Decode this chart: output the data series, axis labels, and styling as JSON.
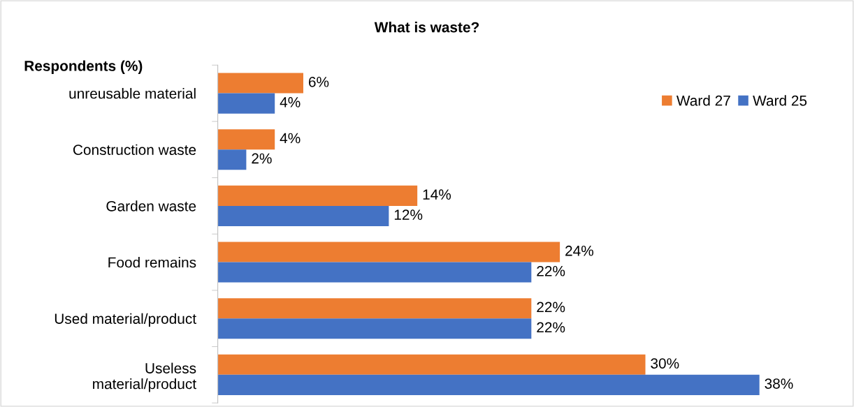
{
  "chart_data": {
    "type": "bar",
    "orientation": "horizontal",
    "title": "What is waste?",
    "ylabel": "Respondents (%)",
    "categories": [
      "unreusable material",
      "Construction waste",
      "Garden waste",
      "Food remains",
      "Used material/product",
      "Useless\nmaterial/product"
    ],
    "series": [
      {
        "name": "Ward 27",
        "color": "#ed7d31",
        "values": [
          6,
          4,
          14,
          24,
          22,
          30
        ],
        "value_labels": [
          "6%",
          "4%",
          "14%",
          "24%",
          "22%",
          "30%"
        ]
      },
      {
        "name": "Ward 25",
        "color": "#4472c4",
        "values": [
          4,
          2,
          12,
          22,
          22,
          38
        ],
        "value_labels": [
          "4%",
          "2%",
          "12%",
          "22%",
          "22%",
          "38%"
        ]
      }
    ],
    "legend": "top right"
  }
}
